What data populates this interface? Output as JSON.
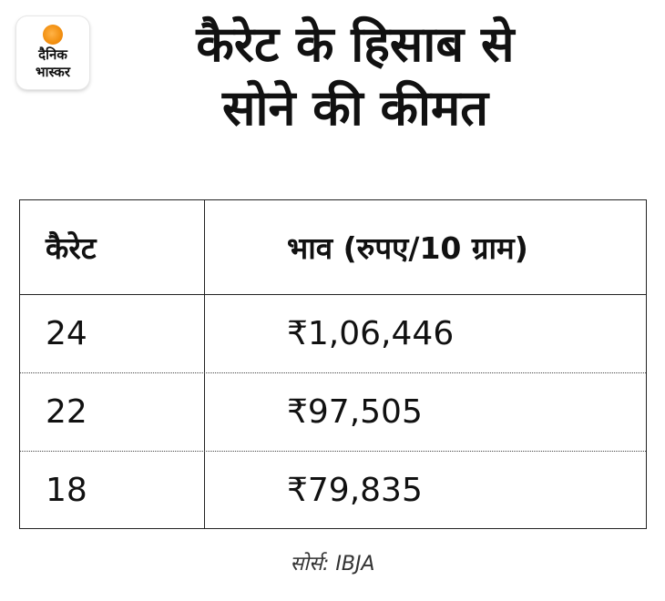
{
  "logo": {
    "line1": "दैनिक",
    "line2": "भास्कर",
    "icon": "sun-icon",
    "accent_color": "#f39214"
  },
  "title": {
    "line1": "कैरेट के हिसाब से",
    "line2": "सोने की कीमत"
  },
  "table": {
    "headers": {
      "karat": "कैरेट",
      "price": "भाव (रुपए/10 ग्राम)"
    },
    "rows": [
      {
        "karat": "24",
        "price": "₹1,06,446"
      },
      {
        "karat": "22",
        "price": "₹97,505"
      },
      {
        "karat": "18",
        "price": "₹79,835"
      }
    ]
  },
  "source": "सोर्स: IBJA"
}
